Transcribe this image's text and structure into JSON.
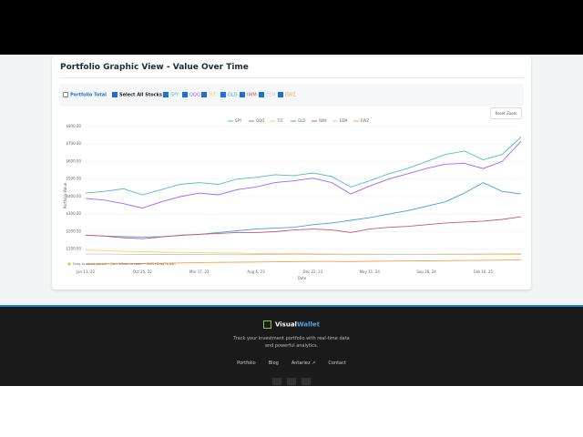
{
  "header": {
    "title": "Portfolio Graphic View - Value Over Time"
  },
  "controls": [
    {
      "label": "Portfolio Total",
      "checked": false
    },
    {
      "label": "Select All Stocks",
      "checked": true
    }
  ],
  "reset_button": "Reset Zoom",
  "chart_data": {
    "type": "line",
    "categories": [
      "Jan 11, 22",
      null,
      null,
      "Oct 25, 22",
      null,
      null,
      "Mar 17, 23",
      null,
      null,
      "Aug 6, 23",
      null,
      null,
      "Dec 22, 23",
      null,
      null,
      "May 11, 24",
      null,
      null,
      "Sep 28, 24",
      null,
      null,
      "Feb 16, 25",
      null,
      null
    ],
    "series": [
      {
        "name": "SPY",
        "color": "#4bc0c0",
        "visible": true,
        "values": [
          420,
          430,
          445,
          410,
          440,
          470,
          480,
          470,
          500,
          510,
          525,
          520,
          535,
          515,
          455,
          490,
          530,
          560,
          600,
          640,
          660,
          610,
          640,
          740
        ]
      },
      {
        "name": "QQQ",
        "color": "#9966ff",
        "visible": true,
        "values": [
          390,
          380,
          360,
          335,
          370,
          400,
          420,
          410,
          440,
          455,
          480,
          490,
          505,
          480,
          415,
          460,
          500,
          530,
          560,
          585,
          590,
          560,
          600,
          715
        ]
      },
      {
        "name": "TLT",
        "color": "#ffcd56",
        "visible": true,
        "values": [
          95,
          92,
          88,
          85,
          83,
          82,
          80,
          78,
          78,
          76,
          75,
          75,
          74,
          73,
          72,
          72,
          71,
          70,
          70,
          70,
          70,
          69,
          69,
          70
        ]
      },
      {
        "name": "GLD",
        "color": "#36a2eb",
        "visible": true,
        "values": [
          180,
          175,
          172,
          170,
          172,
          178,
          185,
          195,
          205,
          215,
          220,
          225,
          240,
          250,
          265,
          280,
          300,
          320,
          345,
          370,
          420,
          480,
          430,
          415
        ]
      },
      {
        "name": "IWM",
        "color": "#c9557d",
        "visible": true,
        "values": [
          180,
          175,
          165,
          160,
          170,
          180,
          185,
          190,
          195,
          195,
          200,
          210,
          215,
          210,
          195,
          215,
          225,
          230,
          240,
          250,
          255,
          260,
          270,
          285
        ]
      },
      {
        "name": "EEM",
        "color": "#c9cbcf",
        "visible": true,
        "values": [
          72,
          72,
          71,
          70,
          70,
          70,
          70,
          69,
          69,
          70,
          70,
          71,
          70,
          70,
          69,
          70,
          70,
          71,
          71,
          72,
          72,
          73,
          74,
          75
        ]
      },
      {
        "name": "EWZ",
        "color": "#ff9f40",
        "visible": true,
        "values": [
          15,
          16,
          17,
          18,
          20,
          22,
          24,
          25,
          26,
          27,
          28,
          29,
          30,
          30,
          29,
          31,
          32,
          33,
          34,
          35,
          36,
          37,
          38,
          40
        ]
      }
    ],
    "ylim": [
      0,
      810
    ],
    "yticks": [
      {
        "value": 100,
        "label": "$100.00"
      },
      {
        "value": 200,
        "label": "$200.00"
      },
      {
        "value": 300,
        "label": "$300.00"
      },
      {
        "value": 400,
        "label": "$400.00"
      },
      {
        "value": 500,
        "label": "$500.00"
      },
      {
        "value": 600,
        "label": "$600.00"
      },
      {
        "value": 700,
        "label": "$700.00"
      },
      {
        "value": 800,
        "label": "$800.00"
      }
    ],
    "grid": true,
    "y_label": "Portfolio Value",
    "x_label": "Date",
    "hint": "Drag to select period • Ctrl+Wheel to zoom • Shift+Drag to pan"
  },
  "footer": {
    "brand_a": "Visual",
    "brand_b": "Wallet",
    "tagline_1": "Track your investment portfolio with real-time data",
    "tagline_2": "and powerful analytics.",
    "links": [
      "Portfolio",
      "Blog",
      "Antariez ↗",
      "Contact"
    ]
  }
}
